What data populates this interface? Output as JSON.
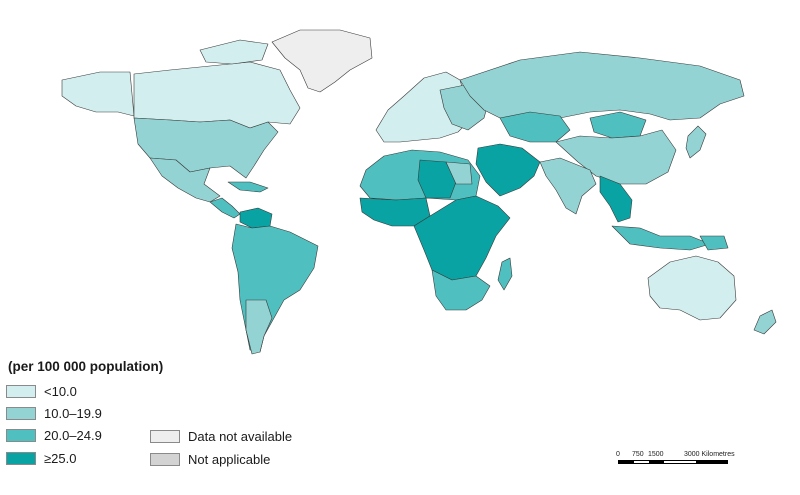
{
  "legend": {
    "title": "(per 100 000 population)",
    "items": [
      {
        "label": "<10.0",
        "color": "#d3eeee"
      },
      {
        "label": "10.0–19.9",
        "color": "#94d3d3"
      },
      {
        "label": "20.0–24.9",
        "color": "#4fbfbf"
      },
      {
        "label": "≥25.0",
        "color": "#0aa3a3"
      }
    ],
    "other": [
      {
        "label": "Data not available",
        "color": "#eeeeee"
      },
      {
        "label": "Not applicable",
        "color": "#d3d3d3"
      }
    ]
  },
  "scale": {
    "ticks": [
      "0",
      "750",
      "1500",
      "3000 Kilometres"
    ]
  }
}
